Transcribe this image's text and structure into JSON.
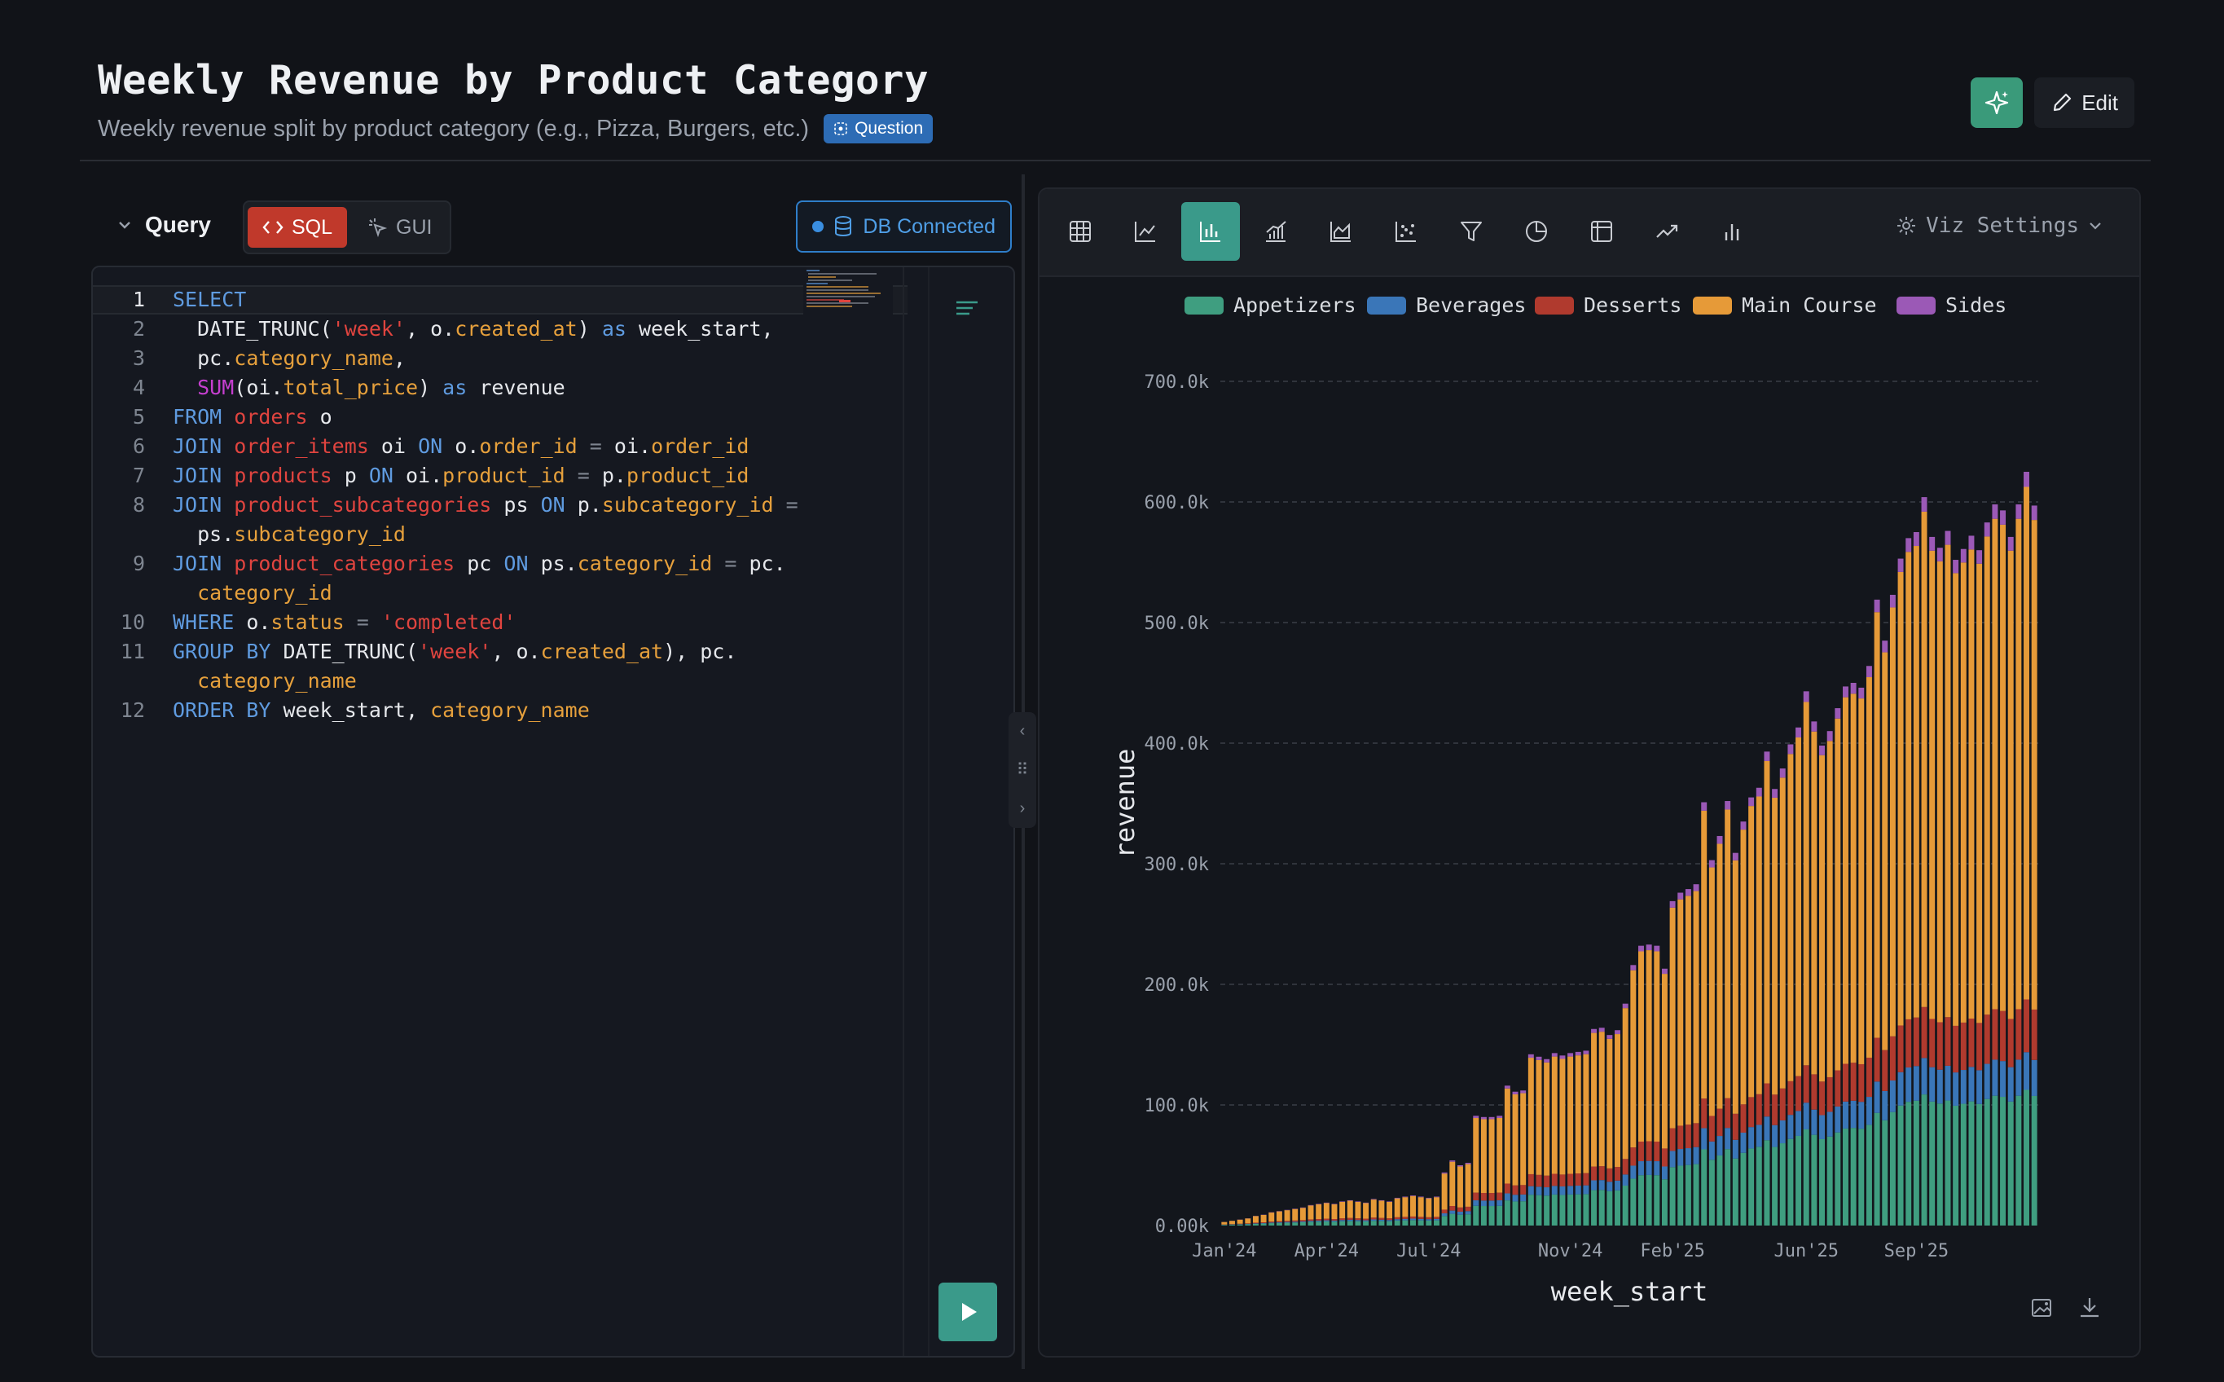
{
  "header": {
    "title": "Weekly Revenue by Product Category",
    "subtitle": "Weekly revenue split by product category (e.g., Pizza, Burgers, etc.)",
    "badge": "Question",
    "edit_label": "Edit"
  },
  "query": {
    "label": "Query",
    "modes": [
      "SQL",
      "GUI"
    ],
    "active_mode": "SQL",
    "db_status": "DB Connected"
  },
  "editor": {
    "lines": [
      {
        "n": "1",
        "tokens": [
          [
            "kw",
            "SELECT"
          ]
        ]
      },
      {
        "n": "2",
        "tokens": [
          [
            "ident",
            "  DATE_TRUNC("
          ],
          [
            "str",
            "'week'"
          ],
          [
            "ident",
            ", o."
          ],
          [
            "col",
            "created_at"
          ],
          [
            "ident",
            ") "
          ],
          [
            "kw",
            "as"
          ],
          [
            "ident",
            " week_start,"
          ]
        ]
      },
      {
        "n": "3",
        "tokens": [
          [
            "ident",
            "  pc."
          ],
          [
            "col",
            "category_name"
          ],
          [
            "ident",
            ","
          ]
        ]
      },
      {
        "n": "4",
        "tokens": [
          [
            "fn",
            "  SUM"
          ],
          [
            "ident",
            "(oi."
          ],
          [
            "col",
            "total_price"
          ],
          [
            "ident",
            ") "
          ],
          [
            "kw",
            "as"
          ],
          [
            "ident",
            " revenue"
          ]
        ]
      },
      {
        "n": "5",
        "tokens": [
          [
            "kw",
            "FROM "
          ],
          [
            "str",
            "orders"
          ],
          [
            "ident",
            " o"
          ]
        ]
      },
      {
        "n": "6",
        "tokens": [
          [
            "kw",
            "JOIN "
          ],
          [
            "str",
            "order_items"
          ],
          [
            "ident",
            " oi "
          ],
          [
            "kw",
            "ON"
          ],
          [
            "ident",
            " o."
          ],
          [
            "col",
            "order_id"
          ],
          [
            "op",
            " = "
          ],
          [
            "ident",
            "oi."
          ],
          [
            "col",
            "order_id"
          ]
        ]
      },
      {
        "n": "7",
        "tokens": [
          [
            "kw",
            "JOIN "
          ],
          [
            "str",
            "products"
          ],
          [
            "ident",
            " p "
          ],
          [
            "kw",
            "ON"
          ],
          [
            "ident",
            " oi."
          ],
          [
            "col",
            "product_id"
          ],
          [
            "op",
            " = "
          ],
          [
            "ident",
            "p."
          ],
          [
            "col",
            "product_id"
          ]
        ]
      },
      {
        "n": "8",
        "tokens": [
          [
            "kw",
            "JOIN "
          ],
          [
            "str",
            "product_subcategories"
          ],
          [
            "ident",
            " ps "
          ],
          [
            "kw",
            "ON"
          ],
          [
            "ident",
            " p."
          ],
          [
            "col",
            "subcategory_id"
          ],
          [
            "op",
            " ="
          ]
        ]
      },
      {
        "n": "",
        "tokens": [
          [
            "ident",
            "  ps."
          ],
          [
            "col",
            "subcategory_id"
          ]
        ]
      },
      {
        "n": "9",
        "tokens": [
          [
            "kw",
            "JOIN "
          ],
          [
            "str",
            "product_categories"
          ],
          [
            "ident",
            " pc "
          ],
          [
            "kw",
            "ON"
          ],
          [
            "ident",
            " ps."
          ],
          [
            "col",
            "category_id"
          ],
          [
            "op",
            " = "
          ],
          [
            "ident",
            "pc."
          ]
        ]
      },
      {
        "n": "",
        "tokens": [
          [
            "col",
            "  category_id"
          ]
        ]
      },
      {
        "n": "10",
        "tokens": [
          [
            "kw",
            "WHERE"
          ],
          [
            "ident",
            " o."
          ],
          [
            "col",
            "status"
          ],
          [
            "op",
            " = "
          ],
          [
            "str",
            "'completed'"
          ]
        ]
      },
      {
        "n": "11",
        "tokens": [
          [
            "kw",
            "GROUP BY"
          ],
          [
            "ident",
            " DATE_TRUNC("
          ],
          [
            "str",
            "'week'"
          ],
          [
            "ident",
            ", o."
          ],
          [
            "col",
            "created_at"
          ],
          [
            "ident",
            "), pc."
          ]
        ]
      },
      {
        "n": "",
        "tokens": [
          [
            "col",
            "  category_name"
          ]
        ]
      },
      {
        "n": "12",
        "tokens": [
          [
            "kw",
            "ORDER BY"
          ],
          [
            "ident",
            " week_start, "
          ],
          [
            "col",
            "category_name"
          ]
        ]
      }
    ]
  },
  "viz": {
    "settings_label": "Viz Settings",
    "tools": [
      "table-icon",
      "line-chart-icon",
      "bar-chart-icon",
      "combo-chart-icon",
      "area-chart-icon",
      "scatter-icon",
      "funnel-icon",
      "pie-chart-icon",
      "pivot-icon",
      "trend-icon",
      "waterfall-icon"
    ],
    "active_tool": "bar-chart-icon"
  },
  "chart_data": {
    "type": "bar",
    "stacked": true,
    "xlabel": "week_start",
    "ylabel": "revenue",
    "ylim": [
      0,
      700000
    ],
    "yticks": [
      "0.00k",
      "100.0k",
      "200.0k",
      "300.0k",
      "400.0k",
      "500.0k",
      "600.0k",
      "700.0k"
    ],
    "xticks": [
      "Jan'24",
      "Apr'24",
      "Jul'24",
      "Nov'24",
      "Feb'25",
      "Jun'25",
      "Sep'25"
    ],
    "xtick_week_index": [
      0,
      13,
      26,
      44,
      57,
      74,
      88
    ],
    "grid": "horizontal-dashed",
    "legend_position": "top",
    "series": [
      {
        "name": "Appetizers",
        "color": "#3f9e80"
      },
      {
        "name": "Beverages",
        "color": "#3a76b8"
      },
      {
        "name": "Desserts",
        "color": "#b03a2e"
      },
      {
        "name": "Main Course",
        "color": "#e69a38"
      },
      {
        "name": "Sides",
        "color": "#9b59b6"
      }
    ],
    "week_count": 104,
    "totals": [
      3000,
      4000,
      5000,
      6000,
      8000,
      9000,
      11000,
      12000,
      13000,
      14000,
      15000,
      17000,
      18000,
      19000,
      18000,
      20000,
      21000,
      20000,
      19000,
      22000,
      21000,
      20000,
      23000,
      24000,
      25000,
      24000,
      23000,
      24000,
      44000,
      54000,
      50000,
      52000,
      91000,
      90000,
      90000,
      91000,
      116000,
      111000,
      112000,
      142000,
      140000,
      138000,
      143000,
      141000,
      143000,
      144000,
      145000,
      163000,
      164000,
      158000,
      162000,
      184000,
      216000,
      232000,
      233000,
      232000,
      213000,
      269000,
      276000,
      279000,
      283000,
      351000,
      303000,
      323000,
      352000,
      309000,
      335000,
      355000,
      363000,
      393000,
      362000,
      379000,
      399000,
      413000,
      443000,
      418000,
      398000,
      410000,
      429000,
      447000,
      450000,
      446000,
      464000,
      519000,
      485000,
      523000,
      553000,
      570000,
      575000,
      604000,
      571000,
      562000,
      576000,
      552000,
      561000,
      572000,
      560000,
      583000,
      598000,
      593000,
      571000,
      598000,
      625000,
      597000
    ],
    "share": {
      "Appetizers": 0.18,
      "Beverages": 0.05,
      "Desserts": 0.07,
      "Main Course": 0.68,
      "Sides": 0.02
    }
  }
}
